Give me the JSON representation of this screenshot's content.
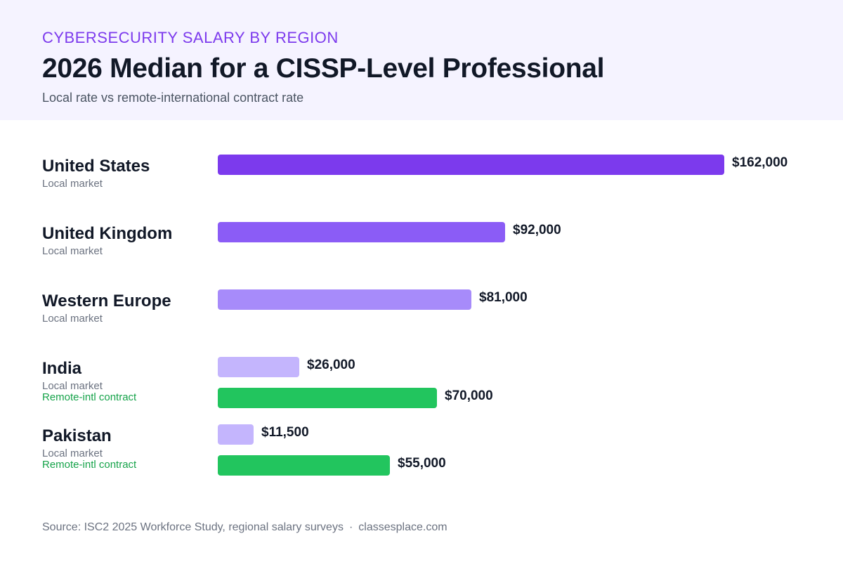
{
  "header": {
    "eyebrow": "CYBERSECURITY SALARY BY REGION",
    "title": "2026 Median for a CISSP-Level Professional",
    "subtitle": "Local rate vs remote-international contract rate"
  },
  "chart_data": {
    "type": "bar",
    "orientation": "horizontal",
    "title": "2026 Median for a CISSP-Level Professional",
    "subtitle": "Local rate vs remote-international contract rate",
    "xlim": [
      0,
      162000
    ],
    "grid": false,
    "categories": [
      {
        "name": "United States",
        "bars": [
          {
            "label": "Local market",
            "value": 162000,
            "value_label": "$162,000",
            "color": "#7c3aed"
          }
        ]
      },
      {
        "name": "United Kingdom",
        "bars": [
          {
            "label": "Local market",
            "value": 92000,
            "value_label": "$92,000",
            "color": "#8b5cf6"
          }
        ]
      },
      {
        "name": "Western Europe",
        "bars": [
          {
            "label": "Local market",
            "value": 81000,
            "value_label": "$81,000",
            "color": "#a78bfa"
          }
        ]
      },
      {
        "name": "India",
        "bars": [
          {
            "label": "Local market",
            "value": 26000,
            "value_label": "$26,000",
            "color": "#c4b5fd"
          },
          {
            "label": "Remote-intl contract",
            "value": 70000,
            "value_label": "$70,000",
            "color": "#22c55e"
          }
        ]
      },
      {
        "name": "Pakistan",
        "bars": [
          {
            "label": "Local market",
            "value": 11500,
            "value_label": "$11,500",
            "color": "#c4b5fd"
          },
          {
            "label": "Remote-intl contract",
            "value": 55000,
            "value_label": "$55,000",
            "color": "#22c55e"
          }
        ]
      }
    ]
  },
  "footer": {
    "source": "Source: ISC2 2025 Workforce Study, regional salary surveys",
    "separator": "·",
    "site": "classesplace.com"
  },
  "colors": {
    "header_bg": "#f5f3ff",
    "accent": "#7c3aed",
    "remote": "#22c55e",
    "remote_text": "#16a34a"
  }
}
